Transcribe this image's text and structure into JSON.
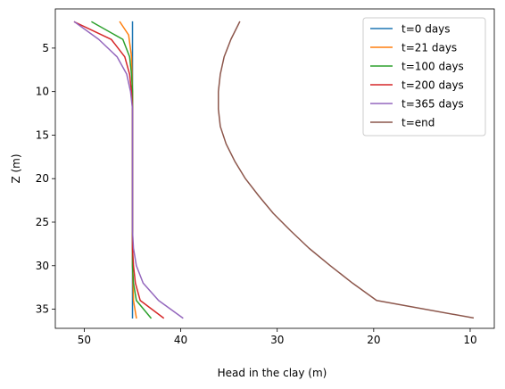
{
  "chart_data": {
    "type": "line",
    "title": "",
    "xlabel": "Head in the clay (m)",
    "ylabel": "Z (m)",
    "xlim": [
      53,
      7.5
    ],
    "ylim": [
      37.2,
      0.5
    ],
    "x_inverted": true,
    "y_inverted": true,
    "xticks": [
      50,
      40,
      30,
      20,
      10
    ],
    "yticks": [
      5,
      10,
      15,
      20,
      25,
      30,
      35
    ],
    "grid": false,
    "legend_position": "top-right",
    "series": [
      {
        "name": "t=0 days",
        "color": "#1f77b4",
        "points": [
          [
            45,
            2
          ],
          [
            45,
            36
          ]
        ]
      },
      {
        "name": "t=21 days",
        "color": "#ff7f0e",
        "points": [
          [
            46.3,
            2
          ],
          [
            45.4,
            3.5
          ],
          [
            45.1,
            6
          ],
          [
            45,
            10
          ],
          [
            45,
            20
          ],
          [
            45,
            30
          ],
          [
            44.9,
            34
          ],
          [
            44.6,
            36
          ]
        ]
      },
      {
        "name": "t=100 days",
        "color": "#2ca02c",
        "points": [
          [
            49.2,
            2
          ],
          [
            46,
            4
          ],
          [
            45.3,
            6
          ],
          [
            45.1,
            8
          ],
          [
            45,
            10
          ],
          [
            45,
            20
          ],
          [
            45,
            30
          ],
          [
            44.9,
            32
          ],
          [
            44.6,
            34
          ],
          [
            43.1,
            36
          ]
        ]
      },
      {
        "name": "t=200 days",
        "color": "#d62728",
        "points": [
          [
            51,
            2
          ],
          [
            47.2,
            4
          ],
          [
            45.8,
            6
          ],
          [
            45.3,
            8
          ],
          [
            45.1,
            10
          ],
          [
            45,
            12
          ],
          [
            45,
            20
          ],
          [
            45,
            28
          ],
          [
            44.9,
            30
          ],
          [
            44.7,
            32
          ],
          [
            44.2,
            34
          ],
          [
            41.8,
            36
          ]
        ]
      },
      {
        "name": "t=365 days",
        "color": "#9467bd",
        "points": [
          [
            51,
            2
          ],
          [
            48.5,
            4
          ],
          [
            46.6,
            6
          ],
          [
            45.6,
            8
          ],
          [
            45.2,
            10
          ],
          [
            45,
            12
          ],
          [
            45,
            20
          ],
          [
            45,
            26
          ],
          [
            44.9,
            28
          ],
          [
            44.6,
            30
          ],
          [
            43.9,
            32
          ],
          [
            42.3,
            34
          ],
          [
            39.8,
            36
          ]
        ]
      },
      {
        "name": "t=end",
        "color": "#8c564b",
        "points": [
          [
            33.9,
            2
          ],
          [
            34.8,
            4
          ],
          [
            35.5,
            6
          ],
          [
            35.9,
            8
          ],
          [
            36.1,
            10
          ],
          [
            36.1,
            12
          ],
          [
            35.9,
            14
          ],
          [
            35.3,
            16
          ],
          [
            34.4,
            18
          ],
          [
            33.3,
            20
          ],
          [
            31.9,
            22
          ],
          [
            30.4,
            24
          ],
          [
            28.6,
            26
          ],
          [
            26.7,
            28
          ],
          [
            24.5,
            30
          ],
          [
            22.2,
            32
          ],
          [
            19.7,
            34
          ],
          [
            9.7,
            36
          ]
        ]
      }
    ]
  }
}
